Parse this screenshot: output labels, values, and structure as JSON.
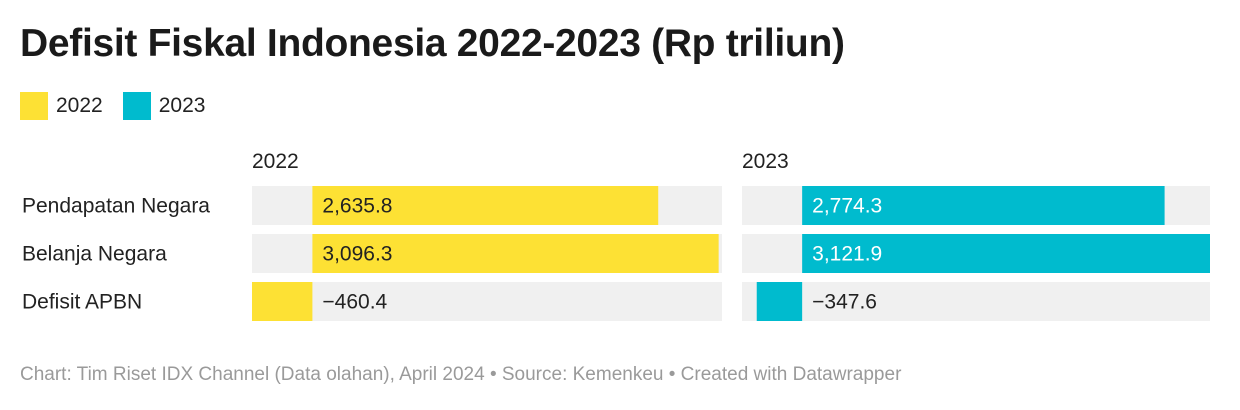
{
  "title": "Defisit Fiskal Indonesia 2022-2023 (Rp triliun)",
  "legend": [
    {
      "label": "2022",
      "color": "#FDE134"
    },
    {
      "label": "2023",
      "color": "#00BBCE"
    }
  ],
  "footer": "Chart: Tim Riset IDX Channel (Data olahan), April 2024 • Source: Kemenkeu • Created with Datawrapper",
  "chart_data": {
    "type": "bar",
    "orientation": "horizontal",
    "categories": [
      "Pendapatan Negara",
      "Belanja Negara",
      "Defisit APBN"
    ],
    "series": [
      {
        "name": "2022",
        "color": "#FDE134",
        "values": [
          2635.8,
          3096.3,
          -460.4
        ],
        "labels": [
          "2,635.8",
          "3,096.3",
          "−460.4"
        ]
      },
      {
        "name": "2023",
        "color": "#00BBCE",
        "values": [
          2774.3,
          3121.9,
          -347.6
        ],
        "labels": [
          "2,774.3",
          "3,121.9",
          "−347.6"
        ]
      }
    ],
    "panel_titles": [
      "2022",
      "2023"
    ],
    "xlim": [
      -460.4,
      3121.9
    ],
    "grid": false,
    "legend_position": "top-left"
  }
}
